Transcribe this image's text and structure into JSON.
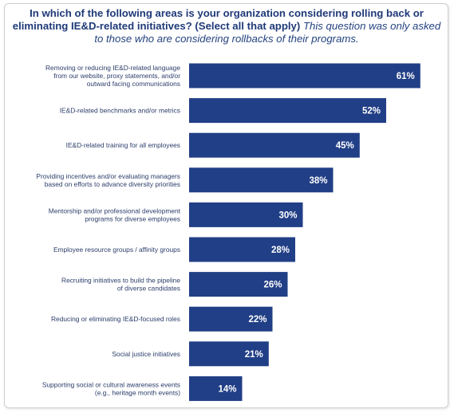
{
  "title": {
    "question": "In which of the following areas is your organization considering rolling back or eliminating IE&D-related initiatives? (Select all that apply)",
    "note": "This question was only asked to those who are considering rollbacks of their programs."
  },
  "colors": {
    "bar": "#213f86",
    "title": "#1f3a78",
    "label": "#2c3e6b"
  },
  "chart_data": {
    "type": "bar",
    "orientation": "horizontal",
    "categories": [
      [
        "Removing or reducing IE&D-related language",
        "from our website, proxy statements, and/or",
        "outward facing communications"
      ],
      [
        "IE&D-related benchmarks and/or metrics"
      ],
      [
        "IE&D-related training for all employees"
      ],
      [
        "Providing incentives and/or evaluating managers",
        "based on efforts to advance diversity priorities"
      ],
      [
        "Mentorship and/or professional development",
        "programs for diverse employees"
      ],
      [
        "Employee resource groups / affinity groups"
      ],
      [
        "Recruiting initiatives to build the pipeline",
        "of diverse candidates"
      ],
      [
        "Reducing or eliminating IE&D-focused roles"
      ],
      [
        "Social justice initiatives"
      ],
      [
        "Supporting social or cultural awareness events",
        "(e.g., heritage month events)"
      ]
    ],
    "values": [
      61,
      52,
      45,
      38,
      30,
      28,
      26,
      22,
      21,
      14
    ],
    "value_labels": [
      "61%",
      "52%",
      "45%",
      "38%",
      "30%",
      "28%",
      "26%",
      "22%",
      "21%",
      "14%"
    ],
    "unit": "%",
    "xlim": [
      0,
      100
    ],
    "grid": false,
    "legend": false
  }
}
